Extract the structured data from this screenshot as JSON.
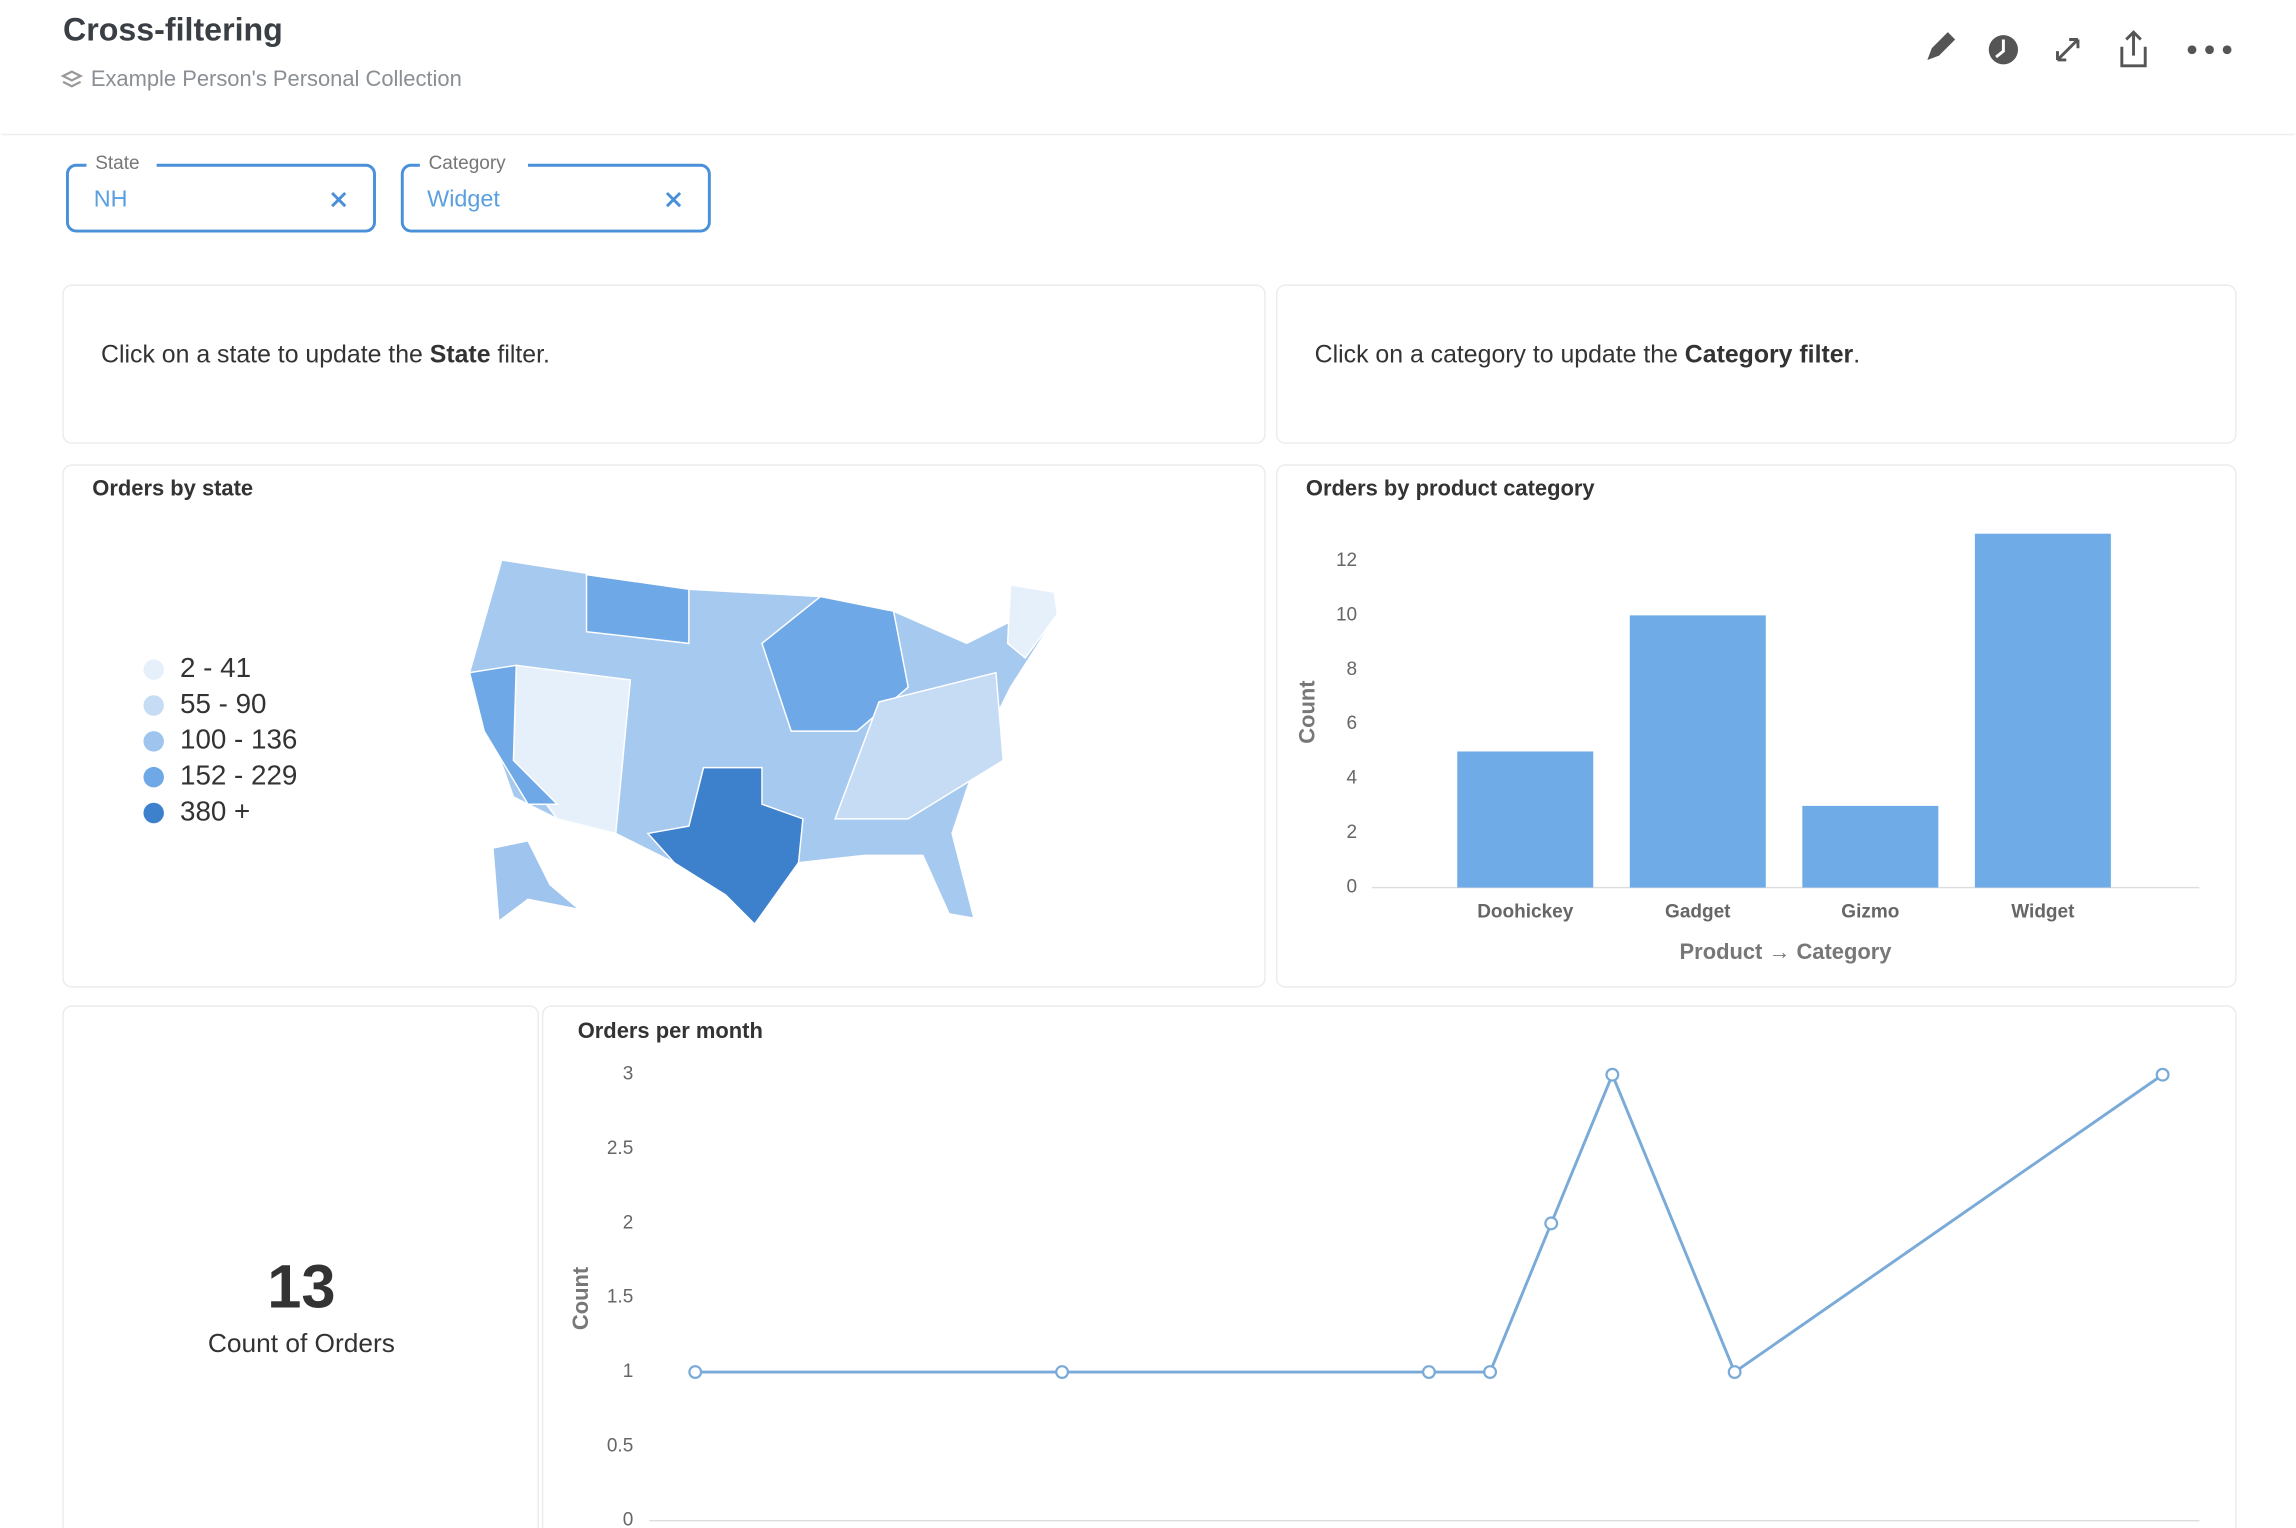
{
  "header": {
    "title": "Cross-filtering",
    "collection": "Example Person's Personal Collection"
  },
  "filters": [
    {
      "label": "State",
      "value": "NH"
    },
    {
      "label": "Category",
      "value": "Widget"
    }
  ],
  "text_cards": [
    {
      "parts": [
        "Click on a state to update the ",
        "State",
        " filter."
      ]
    },
    {
      "parts": [
        "Click on a category to update the ",
        "Category filter",
        "."
      ]
    }
  ],
  "number_card": {
    "value": 13,
    "label": "Count of Orders"
  },
  "chart_data": [
    {
      "type": "map",
      "title": "Orders by state",
      "legend": [
        {
          "label": "2 - 41",
          "color": "#e6f0fb"
        },
        {
          "label": "55 - 90",
          "color": "#c6dcf4"
        },
        {
          "label": "100 - 136",
          "color": "#9fc4ee"
        },
        {
          "label": "152 - 229",
          "color": "#6ea8e6"
        },
        {
          "label": "380 +",
          "color": "#3d80cc"
        }
      ]
    },
    {
      "type": "bar",
      "title": "Orders by product category",
      "x_label": "Product → Category",
      "y_label": "Count",
      "categories": [
        "Doohickey",
        "Gadget",
        "Gizmo",
        "Widget"
      ],
      "values": [
        5,
        10,
        3,
        13
      ],
      "color": "#6fabe6",
      "ylim": [
        0,
        13
      ],
      "yticks": [
        0,
        2,
        4,
        6,
        8,
        10,
        12
      ]
    },
    {
      "type": "line",
      "title": "Orders per month",
      "y_label": "Count",
      "x": [
        0,
        6,
        12,
        13,
        14,
        15,
        17,
        24
      ],
      "values": [
        1,
        1,
        1,
        1,
        2,
        3,
        1,
        3
      ],
      "color": "#7aaad8",
      "xlim": [
        -0.75,
        24.6
      ],
      "ylim": [
        0,
        3
      ],
      "yticks": [
        0,
        0.5,
        1,
        1.5,
        2,
        2.5,
        3
      ]
    }
  ]
}
